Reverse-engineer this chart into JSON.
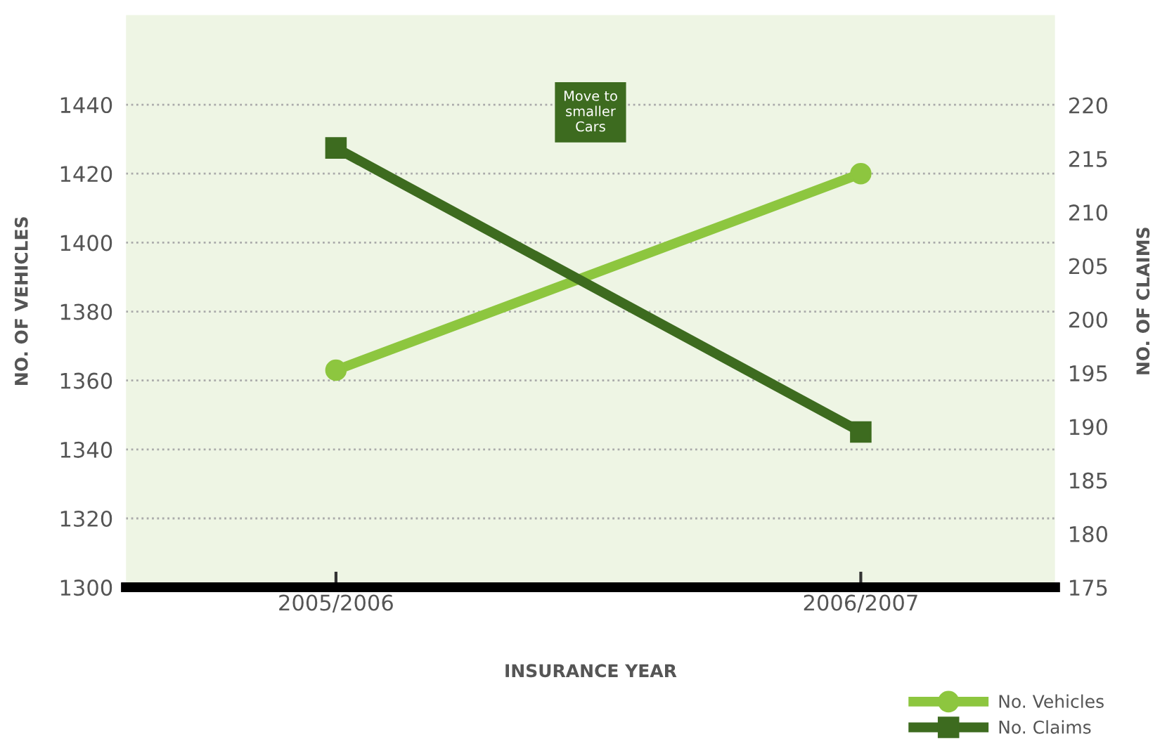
{
  "chart_data": {
    "type": "line",
    "xlabel": "INSURANCE YEAR",
    "ylabel": "NO. OF VEHICLES",
    "y2label": "NO. OF CLAIMS",
    "categories": [
      "2005/2006",
      "2006/2007"
    ],
    "series": [
      {
        "name": "No. Vehicles",
        "color": "#8dc63f",
        "values": [
          1363,
          1420
        ],
        "marker": "circle"
      },
      {
        "name": "No. Claims",
        "color": "#3d6b1f",
        "values": [
          216,
          189.5
        ],
        "marker": "square",
        "axis": "y2"
      }
    ],
    "ylim": [
      1300,
      1466
    ],
    "yticks": [
      1300,
      1320,
      1340,
      1360,
      1380,
      1400,
      1420,
      1440
    ],
    "y2lim": [
      175,
      228.4
    ],
    "y2ticks": [
      175,
      180,
      185,
      190,
      195,
      200,
      205,
      210,
      215,
      220
    ],
    "grid": "y",
    "legend": "bottom right",
    "line_style": "solid",
    "annotations": [
      "Move to\nsmaller\nCars"
    ]
  }
}
